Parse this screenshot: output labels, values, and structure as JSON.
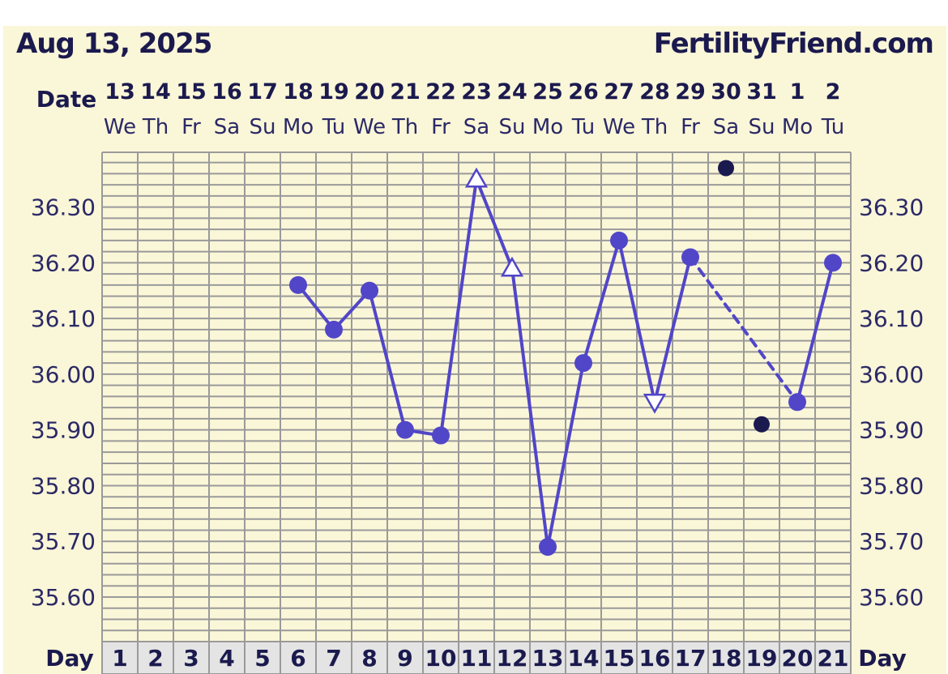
{
  "header": {
    "date": "Aug 13, 2025",
    "site": "FertilityFriend.com"
  },
  "labels": {
    "date_row": "Date",
    "day_row": "Day"
  },
  "colors": {
    "background": "#faf6d8",
    "grid": "#9a9a9a",
    "line": "#5146c8",
    "dot_dark": "#1b1a4e",
    "text": "#1b1a4e",
    "day_cell": "#e4e4e4"
  },
  "chart_data": {
    "type": "line",
    "dates": [
      "13",
      "14",
      "15",
      "16",
      "17",
      "18",
      "19",
      "20",
      "21",
      "22",
      "23",
      "24",
      "25",
      "26",
      "27",
      "28",
      "29",
      "30",
      "31",
      "1",
      "2"
    ],
    "weekdays": [
      "We",
      "Th",
      "Fr",
      "Sa",
      "Su",
      "Mo",
      "Tu",
      "We",
      "Th",
      "Fr",
      "Sa",
      "Su",
      "Mo",
      "Tu",
      "We",
      "Th",
      "Fr",
      "Sa",
      "Su",
      "Mo",
      "Tu"
    ],
    "cycle_days": [
      1,
      2,
      3,
      4,
      5,
      6,
      7,
      8,
      9,
      10,
      11,
      12,
      13,
      14,
      15,
      16,
      17,
      18,
      19,
      20,
      21
    ],
    "y_ticks": [
      "36.30",
      "36.20",
      "36.10",
      "36.00",
      "35.90",
      "35.80",
      "35.70",
      "35.60"
    ],
    "ylim": [
      35.52,
      36.4
    ],
    "series": [
      {
        "points": [
          {
            "day": 6,
            "value": 36.16,
            "marker": "circle"
          },
          {
            "day": 7,
            "value": 36.08,
            "marker": "circle"
          },
          {
            "day": 8,
            "value": 36.15,
            "marker": "circle"
          },
          {
            "day": 9,
            "value": 35.9,
            "marker": "circle"
          },
          {
            "day": 10,
            "value": 35.89,
            "marker": "circle"
          },
          {
            "day": 11,
            "value": 36.35,
            "marker": "triangle-up-open"
          },
          {
            "day": 12,
            "value": 36.19,
            "marker": "triangle-up-open"
          },
          {
            "day": 13,
            "value": 35.69,
            "marker": "circle"
          },
          {
            "day": 14,
            "value": 36.02,
            "marker": "circle"
          },
          {
            "day": 15,
            "value": 36.24,
            "marker": "circle"
          },
          {
            "day": 16,
            "value": 35.95,
            "marker": "triangle-down-open"
          },
          {
            "day": 17,
            "value": 36.21,
            "marker": "circle"
          },
          {
            "day": 20,
            "value": 35.95,
            "marker": "circle",
            "dashed_from_previous": true
          },
          {
            "day": 21,
            "value": 36.2,
            "marker": "circle"
          }
        ]
      }
    ],
    "discarded": [
      {
        "day": 18,
        "value": 36.37
      },
      {
        "day": 19,
        "value": 35.91
      }
    ],
    "grid": true
  }
}
